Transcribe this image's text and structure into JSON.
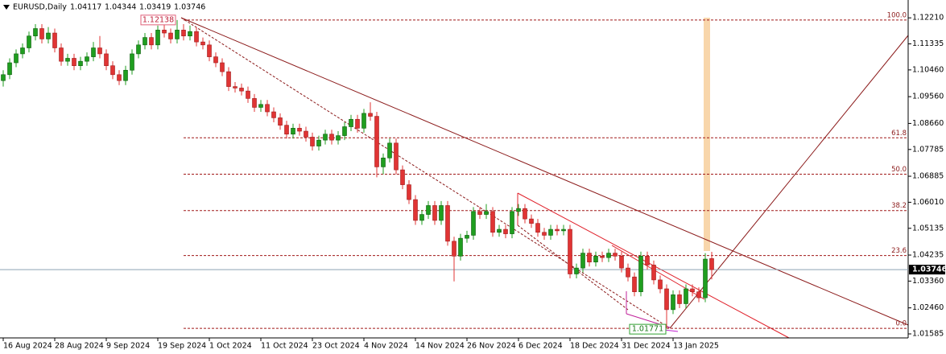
{
  "header": {
    "symbol": "EURUSD,Daily"
  },
  "chart_data": {
    "type": "candlestick",
    "up_color": "#1f9e1f",
    "down_color": "#e03434",
    "ylim": [
      1.0145,
      1.1281
    ],
    "yticks": [
      {
        "value": 1.1221,
        "label": "1.12210"
      },
      1.11335,
      {
        "value": 1.1046,
        "label": "1.10460"
      },
      {
        "value": 1.0956,
        "label": "1.09560"
      },
      {
        "value": 1.0866,
        "label": "1.08660"
      },
      1.07785,
      1.06885,
      {
        "value": 1.0601,
        "label": "1.06010"
      },
      1.05135,
      1.04235,
      {
        "value": 1.0336,
        "label": "1.03360"
      },
      {
        "value": 1.0246,
        "label": "1.02460"
      },
      1.01585
    ],
    "x_labels": [
      "16 Aug 2024",
      "28 Aug 2024",
      "9 Sep 2024",
      "19 Sep 2024",
      "1 Oct 2024",
      "11 Oct 2024",
      "23 Oct 2024",
      "4 Nov 2024",
      "14 Nov 2024",
      "26 Nov 2024",
      "6 Dec 2024",
      "18 Dec 2024",
      "31 Dec 2024",
      "13 Jan 2025"
    ],
    "fibonacci_levels": [
      {
        "value": 100,
        "label": "100.0"
      },
      61.8,
      {
        "value": 50,
        "label": "50.0"
      },
      38.2,
      23.6,
      {
        "value": 0,
        "label": "0.0"
      }
    ],
    "ohlc": [
      [
        1.101,
        1.1045,
        1.099,
        1.103
      ],
      [
        1.103,
        1.1085,
        1.1015,
        1.107
      ],
      [
        1.107,
        1.1115,
        1.1055,
        1.11
      ],
      [
        1.11,
        1.1135,
        1.1085,
        1.112
      ],
      [
        1.112,
        1.1175,
        1.1105,
        1.116
      ],
      [
        1.116,
        1.12,
        1.1145,
        1.1185
      ],
      [
        1.1185,
        1.12,
        1.1135,
        1.115
      ],
      [
        1.115,
        1.119,
        1.1135,
        1.117
      ],
      [
        1.117,
        1.1185,
        1.1105,
        1.112
      ],
      [
        1.112,
        1.1135,
        1.106,
        1.1075
      ],
      [
        1.1075,
        1.11,
        1.106,
        1.1085
      ],
      [
        1.1085,
        1.11,
        1.1045,
        1.106
      ],
      [
        1.106,
        1.109,
        1.1045,
        1.1075
      ],
      [
        1.1075,
        1.1105,
        1.106,
        1.109
      ],
      [
        1.109,
        1.114,
        1.1075,
        1.112
      ],
      [
        1.112,
        1.116,
        1.1085,
        1.11
      ],
      [
        1.11,
        1.1115,
        1.1045,
        1.106
      ],
      [
        1.106,
        1.1075,
        1.1015,
        1.103
      ],
      [
        1.103,
        1.1045,
        1.0995,
        1.101
      ],
      [
        1.101,
        1.106,
        1.0995,
        1.1045
      ],
      [
        1.1045,
        1.1115,
        1.103,
        1.11
      ],
      [
        1.11,
        1.1145,
        1.1085,
        1.113
      ],
      [
        1.113,
        1.117,
        1.1115,
        1.1155
      ],
      [
        1.1155,
        1.117,
        1.1115,
        1.113
      ],
      [
        1.113,
        1.1195,
        1.1115,
        1.118
      ],
      [
        1.118,
        1.12,
        1.1155,
        1.117
      ],
      [
        1.117,
        1.1185,
        1.1135,
        1.115
      ],
      [
        1.115,
        1.12138,
        1.1135,
        1.118
      ],
      [
        1.118,
        1.12,
        1.1145,
        1.116
      ],
      [
        1.116,
        1.1195,
        1.1145,
        1.1175
      ],
      [
        1.1175,
        1.119,
        1.1125,
        1.114
      ],
      [
        1.114,
        1.1155,
        1.1115,
        1.113
      ],
      [
        1.113,
        1.1145,
        1.1075,
        1.109
      ],
      [
        1.109,
        1.1105,
        1.1055,
        1.107
      ],
      [
        1.107,
        1.1085,
        1.1025,
        1.104
      ],
      [
        1.104,
        1.1055,
        1.0975,
        1.099
      ],
      [
        1.099,
        1.1005,
        1.097,
        1.0985
      ],
      [
        1.0985,
        1.1,
        1.096,
        1.0975
      ],
      [
        1.0975,
        1.099,
        1.0935,
        1.095
      ],
      [
        1.095,
        1.0965,
        1.0905,
        1.092
      ],
      [
        1.092,
        1.0945,
        1.0905,
        1.093
      ],
      [
        1.093,
        1.0945,
        1.089,
        1.0905
      ],
      [
        1.0905,
        1.092,
        1.087,
        1.0885
      ],
      [
        1.0885,
        1.09,
        1.0845,
        1.086
      ],
      [
        1.086,
        1.0875,
        1.0815,
        1.083
      ],
      [
        1.083,
        1.0865,
        1.0815,
        1.085
      ],
      [
        1.085,
        1.0865,
        1.0825,
        1.084
      ],
      [
        1.084,
        1.0855,
        1.0805,
        1.082
      ],
      [
        1.082,
        1.0835,
        1.0775,
        1.079
      ],
      [
        1.079,
        1.0825,
        1.0775,
        1.081
      ],
      [
        1.081,
        1.0845,
        1.0795,
        1.083
      ],
      [
        1.083,
        1.0845,
        1.0795,
        1.081
      ],
      [
        1.081,
        1.084,
        1.0795,
        1.0825
      ],
      [
        1.0825,
        1.087,
        1.081,
        1.0855
      ],
      [
        1.0855,
        1.0895,
        1.084,
        1.088
      ],
      [
        1.088,
        1.0895,
        1.0835,
        1.085
      ],
      [
        1.085,
        1.0915,
        1.0835,
        1.09
      ],
      [
        1.09,
        1.0937,
        1.0875,
        1.089
      ],
      [
        1.089,
        1.0905,
        1.0685,
        1.072
      ],
      [
        1.072,
        1.0765,
        1.0695,
        1.075
      ],
      [
        1.075,
        1.0815,
        1.0735,
        1.08
      ],
      [
        1.08,
        1.0815,
        1.0695,
        1.071
      ],
      [
        1.071,
        1.0725,
        1.0645,
        1.066
      ],
      [
        1.066,
        1.0675,
        1.0595,
        1.061
      ],
      [
        1.061,
        1.0625,
        1.0525,
        1.054
      ],
      [
        1.054,
        1.0575,
        1.0525,
        1.056
      ],
      [
        1.056,
        1.0605,
        1.0545,
        1.059
      ],
      [
        1.059,
        1.0605,
        1.0525,
        1.054
      ],
      [
        1.054,
        1.0605,
        1.0525,
        1.059
      ],
      [
        1.059,
        1.0605,
        1.0455,
        1.047
      ],
      [
        1.047,
        1.0485,
        1.0335,
        1.042
      ],
      [
        1.042,
        1.0495,
        1.0405,
        1.048
      ],
      [
        1.048,
        1.0505,
        1.0465,
        1.049
      ],
      [
        1.049,
        1.0585,
        1.0475,
        1.057
      ],
      [
        1.057,
        1.0585,
        1.0545,
        1.056
      ],
      [
        1.056,
        1.0595,
        1.0545,
        1.057
      ],
      [
        1.057,
        1.0585,
        1.0485,
        1.05
      ],
      [
        1.05,
        1.0525,
        1.0485,
        1.051
      ],
      [
        1.051,
        1.0525,
        1.048,
        1.0495
      ],
      [
        1.0495,
        1.0585,
        1.048,
        1.057
      ],
      [
        1.057,
        1.0595,
        1.0555,
        1.058
      ],
      [
        1.058,
        1.0595,
        1.053,
        1.0545
      ],
      [
        1.0545,
        1.056,
        1.0515,
        1.053
      ],
      [
        1.053,
        1.0545,
        1.0485,
        1.05
      ],
      [
        1.05,
        1.0515,
        1.0475,
        1.049
      ],
      [
        1.049,
        1.0525,
        1.0475,
        1.051
      ],
      [
        1.051,
        1.0525,
        1.049,
        1.0505
      ],
      [
        1.0505,
        1.0525,
        1.049,
        1.051
      ],
      [
        1.051,
        1.0525,
        1.0345,
        1.036
      ],
      [
        1.036,
        1.0395,
        1.0345,
        1.038
      ],
      [
        1.038,
        1.0445,
        1.0365,
        1.043
      ],
      [
        1.043,
        1.0445,
        1.0385,
        1.04
      ],
      [
        1.04,
        1.0435,
        1.0385,
        1.042
      ],
      [
        1.042,
        1.0435,
        1.04,
        1.0415
      ],
      [
        1.0415,
        1.0445,
        1.04,
        1.043
      ],
      [
        1.043,
        1.0445,
        1.0405,
        1.042
      ],
      [
        1.042,
        1.0435,
        1.0365,
        1.038
      ],
      [
        1.038,
        1.0395,
        1.0335,
        1.035
      ],
      [
        1.035,
        1.0365,
        1.0285,
        1.03
      ],
      [
        1.03,
        1.0435,
        1.0285,
        1.042
      ],
      [
        1.042,
        1.0435,
        1.0375,
        1.039
      ],
      [
        1.039,
        1.0405,
        1.0325,
        1.034
      ],
      [
        1.034,
        1.0355,
        1.0295,
        1.031
      ],
      [
        1.031,
        1.0325,
        1.01771,
        1.024
      ],
      [
        1.024,
        1.0305,
        1.0225,
        1.029
      ],
      [
        1.029,
        1.0305,
        1.0245,
        1.026
      ],
      [
        1.026,
        1.0325,
        1.0245,
        1.031
      ],
      [
        1.031,
        1.0325,
        1.0285,
        1.03
      ],
      [
        1.03,
        1.0315,
        1.0265,
        1.028
      ],
      [
        1.028,
        1.043,
        1.0265,
        1.041
      ],
      [
        1.04117,
        1.04344,
        1.03419,
        1.03746
      ]
    ]
  }
}
